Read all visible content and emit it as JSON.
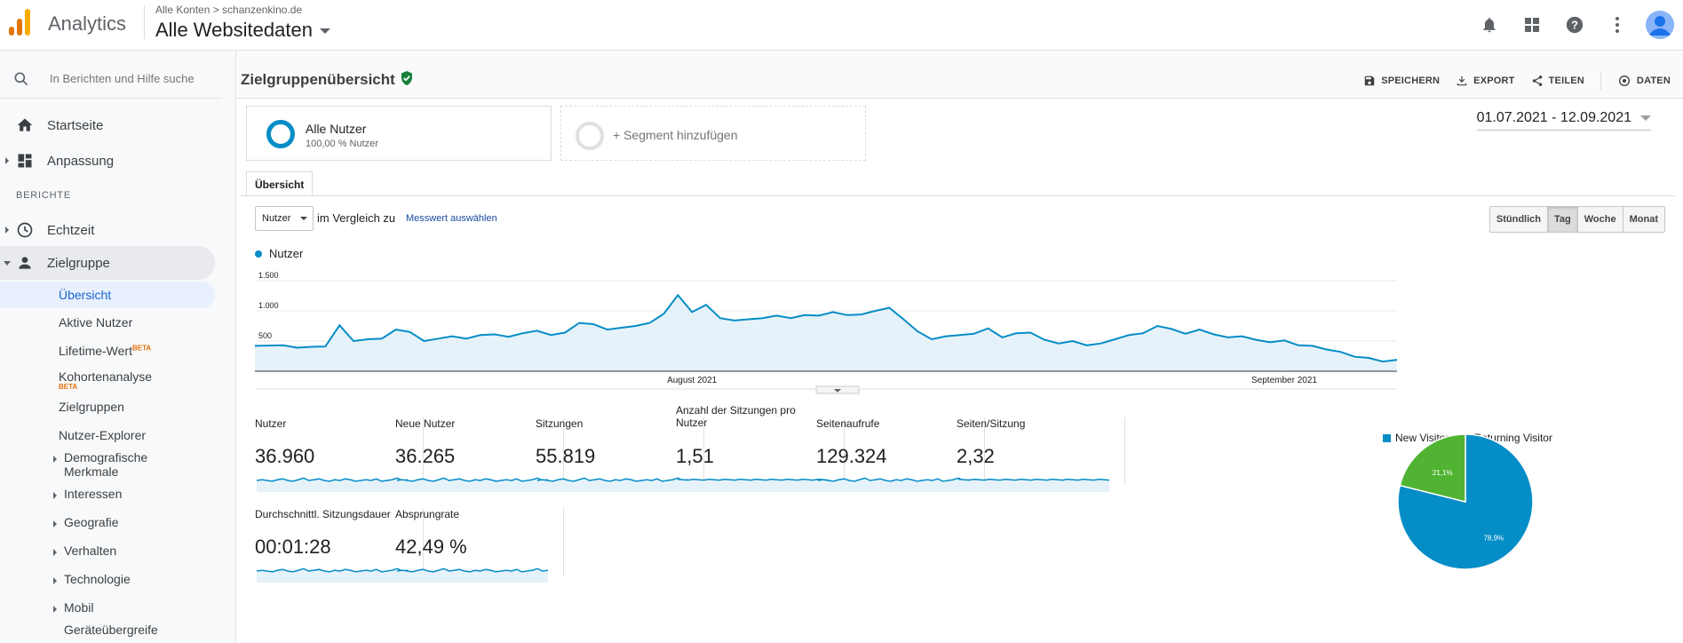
{
  "app": {
    "name": "Analytics"
  },
  "account": {
    "breadcrumb": "Alle Konten > schanzenkino.de",
    "property": "Alle Websitedaten"
  },
  "top_icons": [
    "bell-icon",
    "apps-grid-icon",
    "help-icon",
    "more-vert-icon",
    "avatar"
  ],
  "sidebar": {
    "search_placeholder": "In Berichten und Hilfe suche",
    "top_items": [
      {
        "label": "Startseite",
        "icon": "home-icon"
      },
      {
        "label": "Anpassung",
        "icon": "dashboard-icon"
      }
    ],
    "section_label": "BERICHTE",
    "report_items": [
      {
        "label": "Echtzeit",
        "icon": "clock-icon"
      },
      {
        "label": "Zielgruppe",
        "icon": "person-icon"
      }
    ],
    "audience_sub": [
      {
        "label": "Übersicht"
      },
      {
        "label": "Aktive Nutzer"
      },
      {
        "label": "Lifetime-Wert",
        "badge": "BETA"
      },
      {
        "label": "Kohortenanalyse",
        "badge": "BETA"
      },
      {
        "label": "Zielgruppen"
      },
      {
        "label": "Nutzer-Explorer"
      }
    ],
    "audience_expand": [
      {
        "label": "Demografische Merkmale"
      },
      {
        "label": "Interessen"
      },
      {
        "label": "Geografie"
      },
      {
        "label": "Verhalten"
      },
      {
        "label": "Technologie"
      },
      {
        "label": "Mobil"
      },
      {
        "label": "Geräteübergreife"
      }
    ]
  },
  "page": {
    "title": "Zielgruppenübersicht",
    "actions": [
      {
        "label": "SPEICHERN",
        "icon": "save-icon"
      },
      {
        "label": "EXPORT",
        "icon": "download-icon"
      },
      {
        "label": "TEILEN",
        "icon": "share-icon"
      },
      {
        "label": "DATEN",
        "icon": "insights-icon"
      }
    ],
    "date_range": "01.07.2021 - 12.09.2021",
    "segment": {
      "name": "Alle Nutzer",
      "sub": "100,00 % Nutzer"
    },
    "add_segment": "+ Segment hinzufügen",
    "tab": "Übersicht",
    "metric_select": "Nutzer",
    "compare_text": "im Vergleich zu",
    "compare_link": "Messwert auswählen",
    "periods": [
      {
        "label": "Stündlich",
        "active": false
      },
      {
        "label": "Tag",
        "active": true
      },
      {
        "label": "Woche",
        "active": false
      },
      {
        "label": "Monat",
        "active": false
      }
    ]
  },
  "chart_data": [
    {
      "type": "area",
      "series": [
        {
          "name": "Nutzer",
          "values": [
            420,
            425,
            430,
            390,
            405,
            410,
            760,
            500,
            530,
            540,
            690,
            650,
            500,
            540,
            580,
            540,
            600,
            610,
            570,
            630,
            670,
            600,
            640,
            800,
            780,
            690,
            720,
            750,
            800,
            950,
            1260,
            980,
            1100,
            880,
            840,
            860,
            880,
            920,
            880,
            930,
            920,
            980,
            930,
            940,
            1000,
            1050,
            860,
            660,
            530,
            580,
            600,
            620,
            710,
            560,
            630,
            640,
            520,
            460,
            500,
            430,
            460,
            530,
            600,
            630,
            750,
            700,
            620,
            690,
            610,
            560,
            580,
            520,
            480,
            510,
            430,
            420,
            360,
            320,
            240,
            220,
            160,
            190
          ]
        }
      ],
      "x_labels": [
        "August 2021",
        "September 2021"
      ],
      "y_ticks": [
        "500",
        "1.000",
        "1.500"
      ],
      "ylim": [
        0,
        1500
      ],
      "grid": true
    },
    {
      "type": "pie",
      "categories": [
        "New Visitor",
        "Returning Visitor"
      ],
      "values": [
        78.9,
        21.1
      ],
      "labels": [
        "78,9%",
        "21,1%"
      ],
      "colors": [
        "#058dc7",
        "#50b432"
      ],
      "legend": "top"
    }
  ],
  "scorecards": [
    {
      "label": "Nutzer",
      "value": "36.960"
    },
    {
      "label": "Neue Nutzer",
      "value": "36.265"
    },
    {
      "label": "Sitzungen",
      "value": "55.819"
    },
    {
      "label": "Anzahl der Sitzungen pro Nutzer",
      "value": "1,51"
    },
    {
      "label": "Seitenaufrufe",
      "value": "129.324"
    },
    {
      "label": "Seiten/Sitzung",
      "value": "2,32"
    },
    {
      "label": "Durchschnittl. Sitzungsdauer",
      "value": "00:01:28"
    },
    {
      "label": "Absprungrate",
      "value": "42,49 %"
    }
  ],
  "colors": {
    "primary": "#058dc7",
    "secondary": "#50b432",
    "selected_nav": "#e8f0fe"
  }
}
